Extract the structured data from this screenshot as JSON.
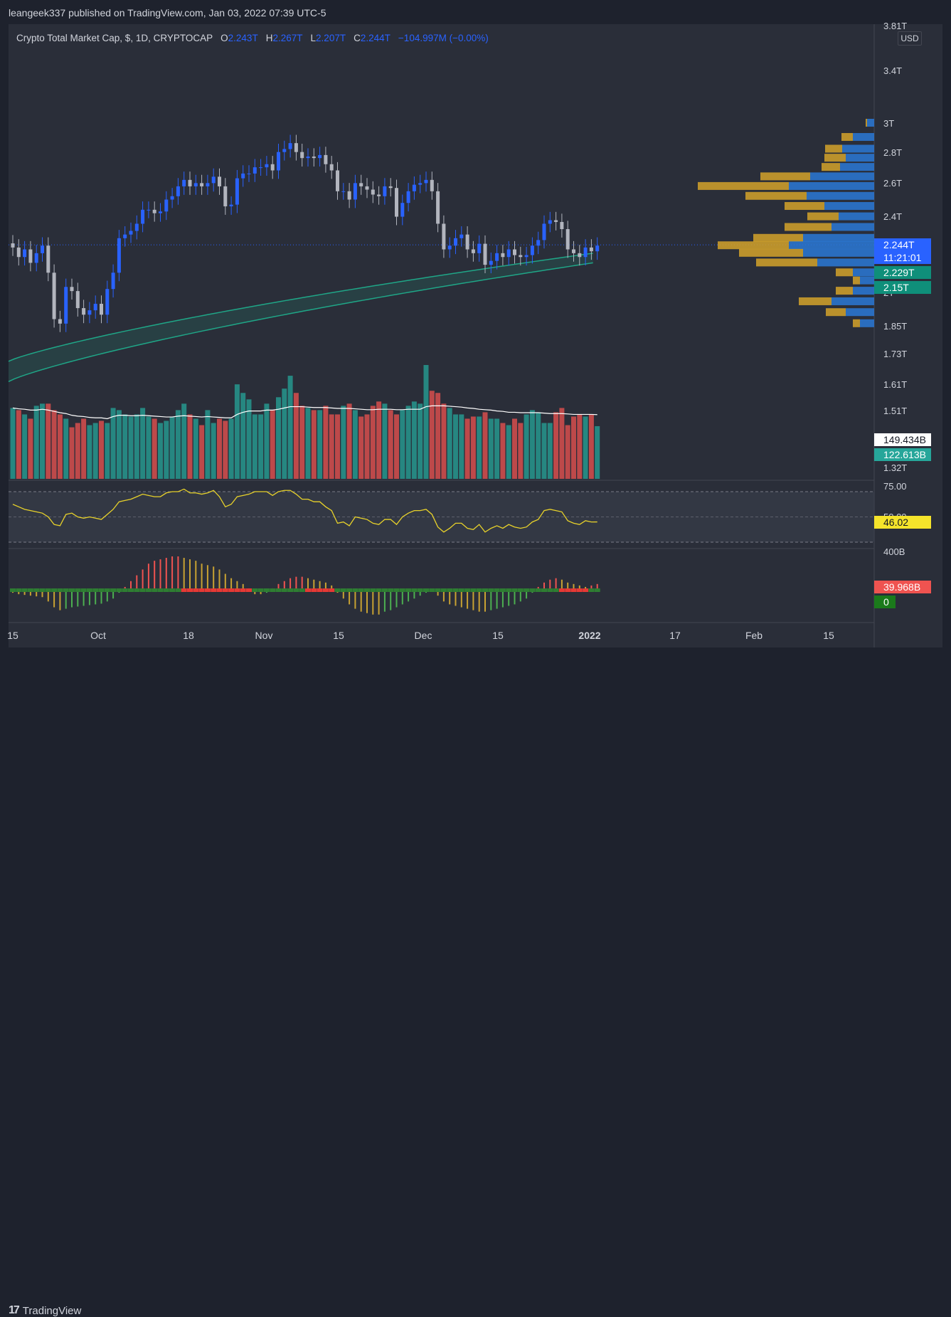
{
  "header": {
    "publisher": "leangeek337 published on TradingView.com, Jan 03, 2022 07:39 UTC-5"
  },
  "legend": {
    "symbol": "Crypto Total Market Cap, $, 1D, CRYPTOCAP",
    "o_key": "O",
    "o_val": "2.243T",
    "h_key": "H",
    "h_val": "2.267T",
    "l_key": "L",
    "l_val": "2.207T",
    "c_key": "C",
    "c_val": "2.244T",
    "change": "−104.997M (−0.00%)"
  },
  "currency_button": "USD",
  "price_axis_ticks": [
    "3.81T",
    "3.4T",
    "3T",
    "2.8T",
    "2.6T",
    "2.4T",
    "2T",
    "1.85T",
    "1.73T",
    "1.61T",
    "1.51T",
    "1.32T"
  ],
  "price_badges": [
    {
      "text": "2.244T",
      "color": "#2962ff"
    },
    {
      "text": "11:21:01",
      "color": "#2962ff"
    },
    {
      "text": "2.229T",
      "color": "#0f8f7a"
    },
    {
      "text": "2.15T",
      "color": "#0f8f7a"
    }
  ],
  "volume_badges": [
    {
      "text": "149.434B",
      "color": "#ffffff",
      "text_color": "#131722"
    },
    {
      "text": "122.613B",
      "color": "#26a69a",
      "text_color": "#ffffff"
    }
  ],
  "rsi_axis": {
    "top": "75.00",
    "mid": "50.00",
    "value": "46.02"
  },
  "macd_axis": {
    "top": "400B",
    "value1": "39.968B",
    "value2": "0"
  },
  "time_axis": [
    "15",
    "Oct",
    "18",
    "Nov",
    "15",
    "Dec",
    "15",
    "2022",
    "17",
    "Feb",
    "15"
  ],
  "footer": {
    "logo_text": "TradingView",
    "logo_mark": "17"
  },
  "colors": {
    "up": "#2962ff",
    "down": "#b2b5be",
    "vol_up": "#26a69a",
    "vol_down": "#ef5350",
    "rsi": "#e8d22a",
    "ema": "#1fa687"
  },
  "chart_data": {
    "type": "candlestick",
    "title": "Crypto Total Market Cap, $, 1D, CRYPTOCAP",
    "ylim_T": [
      1.3,
      3.81
    ],
    "log_scale": true,
    "date_range": [
      "2021-09-15",
      "2022-01-03"
    ],
    "close_T": [
      2.23,
      2.18,
      2.22,
      2.15,
      2.2,
      2.24,
      2.1,
      1.88,
      1.86,
      2.03,
      2.01,
      1.93,
      1.9,
      1.92,
      1.95,
      1.9,
      2.02,
      2.1,
      2.28,
      2.3,
      2.32,
      2.36,
      2.44,
      2.44,
      2.42,
      2.43,
      2.5,
      2.52,
      2.58,
      2.62,
      2.58,
      2.6,
      2.58,
      2.6,
      2.64,
      2.58,
      2.46,
      2.47,
      2.63,
      2.66,
      2.66,
      2.7,
      2.7,
      2.72,
      2.68,
      2.8,
      2.82,
      2.86,
      2.8,
      2.76,
      2.77,
      2.76,
      2.78,
      2.72,
      2.68,
      2.55,
      2.55,
      2.5,
      2.6,
      2.58,
      2.56,
      2.53,
      2.52,
      2.58,
      2.57,
      2.4,
      2.48,
      2.55,
      2.59,
      2.6,
      2.62,
      2.55,
      2.36,
      2.22,
      2.24,
      2.28,
      2.3,
      2.22,
      2.2,
      2.25,
      2.14,
      2.16,
      2.2,
      2.18,
      2.22,
      2.19,
      2.18,
      2.19,
      2.24,
      2.27,
      2.36,
      2.38,
      2.37,
      2.33,
      2.22,
      2.2,
      2.18,
      2.23,
      2.21,
      2.24
    ],
    "volume_B": [
      165,
      160,
      150,
      140,
      170,
      175,
      175,
      160,
      150,
      140,
      120,
      130,
      140,
      125,
      130,
      135,
      130,
      165,
      160,
      150,
      145,
      150,
      165,
      145,
      140,
      130,
      135,
      145,
      160,
      175,
      150,
      140,
      125,
      160,
      130,
      140,
      135,
      140,
      220,
      200,
      185,
      150,
      150,
      175,
      160,
      190,
      210,
      240,
      200,
      170,
      165,
      160,
      160,
      170,
      150,
      150,
      170,
      175,
      160,
      145,
      150,
      170,
      180,
      175,
      160,
      150,
      160,
      170,
      180,
      175,
      265,
      205,
      200,
      175,
      165,
      150,
      150,
      140,
      145,
      145,
      155,
      140,
      140,
      130,
      125,
      140,
      130,
      150,
      160,
      155,
      130,
      130,
      155,
      165,
      125,
      145,
      150,
      145,
      150,
      122.613
    ],
    "volume_ma_B": [
      165,
      163,
      162,
      160,
      160,
      162,
      160,
      157,
      154,
      152,
      148,
      146,
      145,
      143,
      142,
      142,
      140,
      145,
      148,
      148,
      147,
      147,
      148,
      147,
      146,
      145,
      144,
      144,
      146,
      147,
      146,
      145,
      144,
      145,
      144,
      143,
      142,
      142,
      150,
      155,
      158,
      158,
      158,
      160,
      160,
      162,
      165,
      168,
      168,
      168,
      167,
      166,
      166,
      166,
      165,
      164,
      164,
      164,
      163,
      162,
      161,
      161,
      162,
      162,
      162,
      161,
      161,
      162,
      162,
      162,
      168,
      170,
      170,
      170,
      169,
      168,
      167,
      165,
      164,
      162,
      161,
      160,
      158,
      157,
      155,
      155,
      154,
      154,
      154,
      154,
      153,
      152,
      152,
      152,
      151,
      150,
      150,
      150,
      150,
      149.434
    ],
    "rsi": [
      60,
      58,
      56,
      55,
      54,
      53,
      50,
      44,
      43,
      52,
      53,
      50,
      49,
      50,
      49,
      48,
      52,
      56,
      62,
      63,
      64,
      66,
      68,
      67,
      66,
      66,
      69,
      70,
      70,
      72,
      69,
      69,
      68,
      69,
      71,
      66,
      58,
      60,
      66,
      67,
      68,
      70,
      70,
      70,
      67,
      70,
      71,
      71,
      68,
      64,
      64,
      62,
      62,
      58,
      55,
      45,
      46,
      43,
      50,
      49,
      48,
      45,
      44,
      48,
      48,
      44,
      50,
      53,
      55,
      55,
      56,
      52,
      42,
      38,
      41,
      45,
      45,
      41,
      40,
      44,
      38,
      41,
      43,
      41,
      44,
      42,
      41,
      42,
      46,
      48,
      55,
      56,
      55,
      54,
      47,
      45,
      44,
      47,
      46,
      46.02
    ],
    "rsi_levels": [
      30,
      50,
      70
    ],
    "macd_hist_B": [
      -20,
      -30,
      -35,
      -40,
      -45,
      -50,
      -80,
      -120,
      -140,
      -130,
      -120,
      -115,
      -110,
      -105,
      -100,
      -95,
      -80,
      -60,
      -20,
      20,
      60,
      100,
      140,
      180,
      200,
      210,
      220,
      230,
      230,
      220,
      210,
      200,
      180,
      170,
      160,
      140,
      110,
      80,
      60,
      40,
      10,
      -30,
      -30,
      -20,
      10,
      40,
      60,
      80,
      90,
      90,
      80,
      70,
      60,
      50,
      30,
      -20,
      -60,
      -100,
      -130,
      -150,
      -160,
      -170,
      -170,
      -150,
      -140,
      -120,
      -100,
      -80,
      -60,
      -40,
      -20,
      -10,
      -40,
      -80,
      -100,
      -110,
      -120,
      -130,
      -140,
      -150,
      -150,
      -140,
      -130,
      -120,
      -110,
      -100,
      -80,
      -60,
      -20,
      20,
      50,
      70,
      80,
      70,
      50,
      40,
      30,
      20,
      30,
      39.968
    ]
  }
}
